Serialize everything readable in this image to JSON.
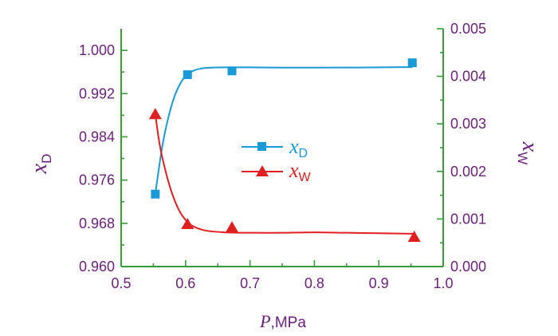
{
  "chart_data": {
    "type": "line",
    "title": "",
    "xlabel": {
      "symbol": "P",
      "unit": ",MPa"
    },
    "ylabel_left": {
      "symbol": "x",
      "sub": "D"
    },
    "ylabel_right": {
      "symbol": "x",
      "sub": "W"
    },
    "xlim": [
      0.5,
      1.0
    ],
    "ylim_left": [
      0.96,
      1.004
    ],
    "ylim_right": [
      0.0,
      0.005
    ],
    "x_ticks": [
      "0.5",
      "0.6",
      "0.7",
      "0.8",
      "0.9",
      "1.0"
    ],
    "x_tick_values": [
      0.5,
      0.6,
      0.7,
      0.8,
      0.9,
      1.0
    ],
    "y_left_ticks": [
      "0.960",
      "0.968",
      "0.976",
      "0.984",
      "0.992",
      "1.000"
    ],
    "y_left_tick_values": [
      0.96,
      0.968,
      0.976,
      0.984,
      0.992,
      1.0
    ],
    "y_right_ticks": [
      "0.000",
      "0.001",
      "0.002",
      "0.003",
      "0.004",
      "0.005"
    ],
    "y_right_tick_values": [
      0.0,
      0.001,
      0.002,
      0.003,
      0.004,
      0.005
    ],
    "grid": false,
    "legend_position": "center",
    "series": [
      {
        "name": "xD",
        "label_symbol": "x",
        "label_sub": "D",
        "axis": "left",
        "marker": "square",
        "color": "#1a9ad6",
        "x": [
          0.553,
          0.603,
          0.672,
          0.952
        ],
        "y": [
          0.9734,
          0.9955,
          0.9962,
          0.9977
        ],
        "fit_x": [
          0.553,
          0.565,
          0.58,
          0.595,
          0.61,
          0.625,
          0.64,
          0.66,
          0.7,
          0.75,
          0.8,
          0.85,
          0.9,
          0.952
        ],
        "fit_y": [
          0.9734,
          0.983,
          0.9905,
          0.9945,
          0.9961,
          0.99665,
          0.9968,
          0.99685,
          0.99685,
          0.9968,
          0.9968,
          0.99682,
          0.99685,
          0.9969
        ]
      },
      {
        "name": "xW",
        "label_symbol": "x",
        "label_sub": "W",
        "axis": "right",
        "marker": "triangle",
        "color": "#e02020",
        "x": [
          0.553,
          0.603,
          0.672,
          0.955
        ],
        "y": [
          0.0032,
          0.00089,
          0.00082,
          0.00062
        ],
        "fit_x": [
          0.553,
          0.56,
          0.57,
          0.58,
          0.59,
          0.6,
          0.61,
          0.63,
          0.66,
          0.7,
          0.75,
          0.8,
          0.85,
          0.9,
          0.955
        ],
        "fit_y": [
          0.0032,
          0.00255,
          0.00195,
          0.0015,
          0.00118,
          0.00098,
          0.00086,
          0.00076,
          0.00072,
          0.00071,
          0.00071,
          0.00072,
          0.00071,
          0.0007,
          0.00069
        ]
      }
    ]
  }
}
